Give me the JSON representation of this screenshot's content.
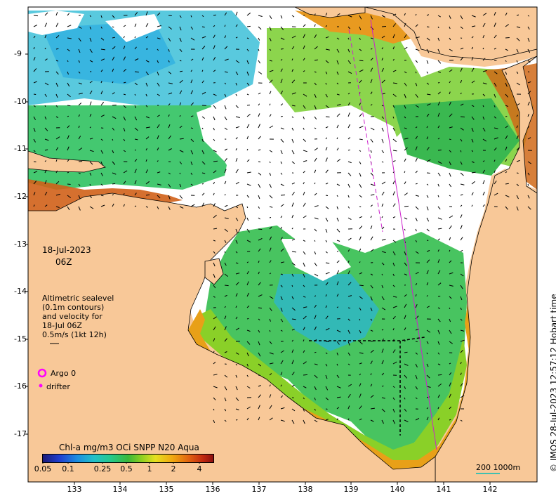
{
  "map": {
    "date_line1": "18-Jul-2023",
    "date_line2": "06Z",
    "legend_lines": [
      "Altimetric sealevel",
      "(0.1m contours)",
      "and velocity for",
      "18-Jul 06Z",
      "0.5m/s (1kt 12h)"
    ],
    "argo_label": "Argo 0",
    "drifter_label": "drifter",
    "credit": "© IMOS 28-Jul-2023 12:57:12 Hobart time",
    "colorbar_title": "Chl-a mg/m3 OCi SNPP N20 Aqua",
    "colorbar_ticks": [
      "0.05",
      "0.1",
      "0.25",
      "0.5",
      "1",
      "2",
      "4"
    ],
    "scale_label": "200  1000m",
    "lat_ticks": [
      "-9",
      "-10",
      "-11",
      "-12",
      "-13",
      "-14",
      "-15",
      "-16",
      "-17"
    ],
    "lon_ticks": [
      "133",
      "134",
      "135",
      "136",
      "137",
      "138",
      "139",
      "140",
      "141",
      "142"
    ],
    "colors": {
      "land": "#f8c898",
      "coast": "#000000",
      "argo": "#ff00ff",
      "track": "#cc22cc"
    }
  }
}
